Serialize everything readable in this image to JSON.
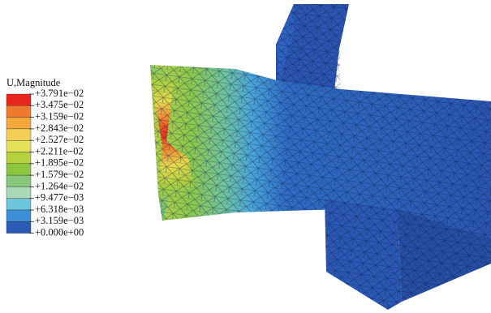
{
  "legend": {
    "title": "U,Magnitude",
    "levels": [
      "+3.791e−02",
      "+3.475e−02",
      "+3.159e−02",
      "+2.843e−02",
      "+2.527e−02",
      "+2.211e−02",
      "+1.895e−02",
      "+1.579e−02",
      "+1.264e−02",
      "+9.477e−03",
      "+6.318e−03",
      "+3.159e−03",
      "+0.000e+00"
    ]
  }
}
